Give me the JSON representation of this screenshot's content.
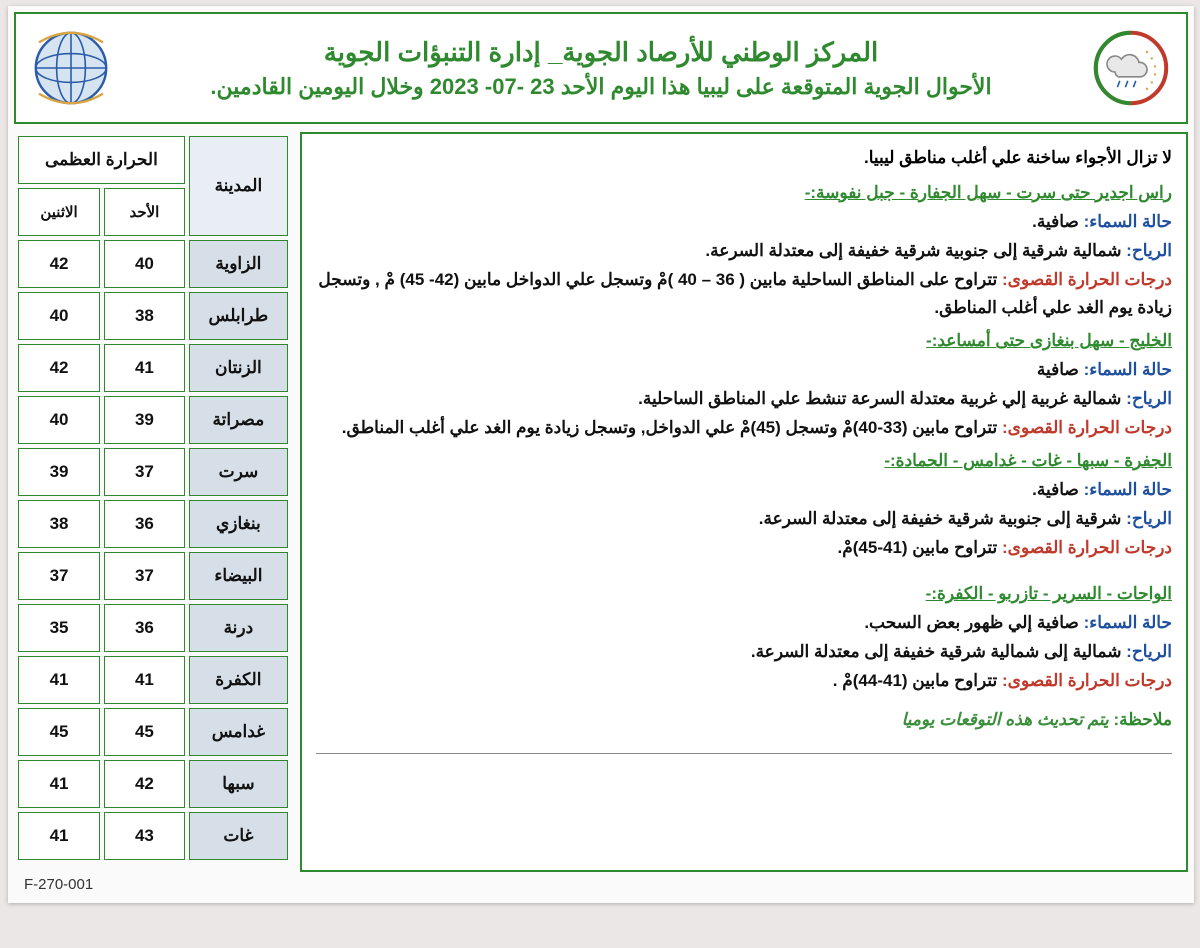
{
  "header": {
    "title1": "المركز الوطني للأرصاد الجوية_ إدارة التنبؤات الجوية",
    "title2": "الأحوال الجوية المتوقعة على ليبيا هذا اليوم الأحد 23 -07- 2023 وخلال اليومين القادمين."
  },
  "labels": {
    "sky": "حالة السماء:",
    "wind": "الرياح:",
    "temp": "درجات الحرارة القصوى:",
    "note": "ملاحظة:"
  },
  "intro": "لا تزال الأجواء ساخنة علي أغلب مناطق ليبيا.",
  "regions": [
    {
      "title": "راس اجدير حتى سرت - سهل الجفارة - جبل نفوسة:-",
      "sky": " صافية.",
      "wind": " شمالية شرقية إلى جنوبية شرقية خفيفة إلى معتدلة السرعة.",
      "temp": " تتراوح على المناطق الساحلية مابين ( 36 – 40 )مْ وتسجل علي الدواخل مابين (42- 45) مْ , وتسجل زيادة يوم الغد علي أغلب المناطق."
    },
    {
      "title": "الخليج - سهل بنغازى حتى أمساعد:-",
      "sky": " صافية",
      "wind": " شمالية غربية إلي غربية معتدلة السرعة تنشط علي المناطق الساحلية.",
      "temp": " تتراوح مابين (33-40)مْ وتسجل (45)مْ علي الدواخل, وتسجل زيادة يوم الغد علي أغلب المناطق."
    },
    {
      "title": "الجفرة - سبها - غات - غدامس - الحمادة:-",
      "sky": " صافية.",
      "wind": " شرقية إلى جنوبية شرقية خفيفة إلى معتدلة السرعة.",
      "temp": " تتراوح مابين (41-45)مْ."
    },
    {
      "title": "الواحات - السرير - تازربو - الكفرة:-",
      "sky": " صافية إلي ظهور بعض السحب.",
      "wind": " شمالية إلى شمالية شرقية خفيفة إلى معتدلة السرعة.",
      "temp": " تتراوح مابين (41-44)مْ ."
    }
  ],
  "note_text": " يتم تحديث هذه التوقعات يوميا",
  "temp_table": {
    "group_header": "الحرارة العظمى",
    "city_header": "المدينة",
    "days": [
      "الأحد",
      "الاثنين"
    ],
    "rows": [
      {
        "city": "الزاوية",
        "d1": "40",
        "d2": "42"
      },
      {
        "city": "طرابلس",
        "d1": "38",
        "d2": "40"
      },
      {
        "city": "الزنتان",
        "d1": "41",
        "d2": "42"
      },
      {
        "city": "مصراتة",
        "d1": "39",
        "d2": "40"
      },
      {
        "city": "سرت",
        "d1": "37",
        "d2": "39"
      },
      {
        "city": "بنغازي",
        "d1": "36",
        "d2": "38"
      },
      {
        "city": "البيضاء",
        "d1": "37",
        "d2": "37"
      },
      {
        "city": "درنة",
        "d1": "36",
        "d2": "35"
      },
      {
        "city": "الكفرة",
        "d1": "41",
        "d2": "41"
      },
      {
        "city": "غدامس",
        "d1": "45",
        "d2": "45"
      },
      {
        "city": "سبها",
        "d1": "42",
        "d2": "41"
      },
      {
        "city": "غات",
        "d1": "43",
        "d2": "41"
      }
    ]
  },
  "footer": "F-270-001",
  "colors": {
    "green": "#2f8a2f",
    "blue": "#1f4fa0",
    "red": "#c0392b",
    "cell_bg": "#d6dfe8",
    "page_bg": "#ebe7e6"
  }
}
